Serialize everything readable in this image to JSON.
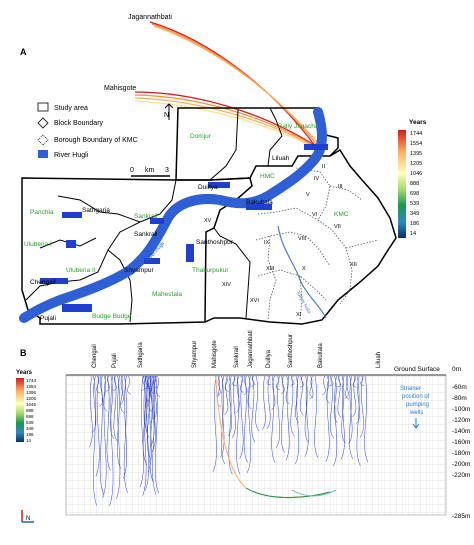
{
  "panel_a": {
    "label": "A",
    "track_labels": {
      "jagannathbati": "Jagannathbati",
      "mahisgote": "Mahisgote"
    },
    "legend": {
      "study_area": "Study area",
      "block_boundary": "Block Boundary",
      "borough_boundary": "Borough Boundary of KMC",
      "river": "River Hugli"
    },
    "scale": {
      "zero": "0",
      "unit": "km",
      "three": "3"
    },
    "north": "N",
    "colorbar": {
      "title": "Years",
      "ticks": [
        "1744",
        "1554",
        "1395",
        "1205",
        "1046",
        "888",
        "698",
        "539",
        "349",
        "186",
        "14"
      ],
      "colors": [
        "#d7191c",
        "#f03b20",
        "#fd8d3c",
        "#fdae61",
        "#fee08b",
        "#d9ef8b",
        "#91cf60",
        "#1a9850",
        "#3288bd",
        "#2166ac",
        "#08306b"
      ]
    },
    "place_labels": {
      "domjur": "Domjur",
      "bally_jagacha": "Bally Jagacha",
      "liluah": "Liluah",
      "hmc": "HMC",
      "duillya": "Duillya",
      "bakultala": "Bakultala",
      "panchla": "Panchla",
      "sathgaria": "Sathgaria",
      "sankrail_block": "Sankrail",
      "sankrail": "Sankrail",
      "uluberia_i": "Uluberia I",
      "uluberia_ii": "Uluberia II",
      "santhoshpur": "Santhoshpur",
      "thakurpukur": "Thakurpukur",
      "chengail": "Chengail",
      "shyampur": "Shyampur",
      "mahestala": "Mahestala",
      "pujali": "Pujali",
      "budge_budge": "Budge Budge",
      "kmc": "KMC",
      "river_hugli": "River Hugli",
      "tollys_nala": "Tolly's Nala"
    },
    "boroughs": [
      "II",
      "III",
      "IV",
      "V",
      "VI",
      "VII",
      "VIII",
      "IX",
      "X",
      "XI",
      "XII",
      "XIII",
      "XIV",
      "XV",
      "XVI"
    ]
  },
  "panel_b": {
    "label": "B",
    "colorbar": {
      "title": "Years"
    },
    "ground_surface": "Ground Surface",
    "strainer": [
      "Strainer",
      "position of",
      "pumping",
      "wells"
    ],
    "depths": [
      "0m",
      "-60m",
      "-80m",
      "-100m",
      "-120m",
      "-140m",
      "-160m",
      "-180m",
      "-200m",
      "-220m",
      "-285m"
    ],
    "top_labels": [
      "Chengail",
      "Pujali",
      "Sathgaria",
      "Shyampur",
      "Mahisgote",
      "Sankrail",
      "Jagannathbati",
      "Duillya",
      "Santhoshpur",
      "Bakultala",
      "Liluah"
    ],
    "axis_north": "N"
  }
}
